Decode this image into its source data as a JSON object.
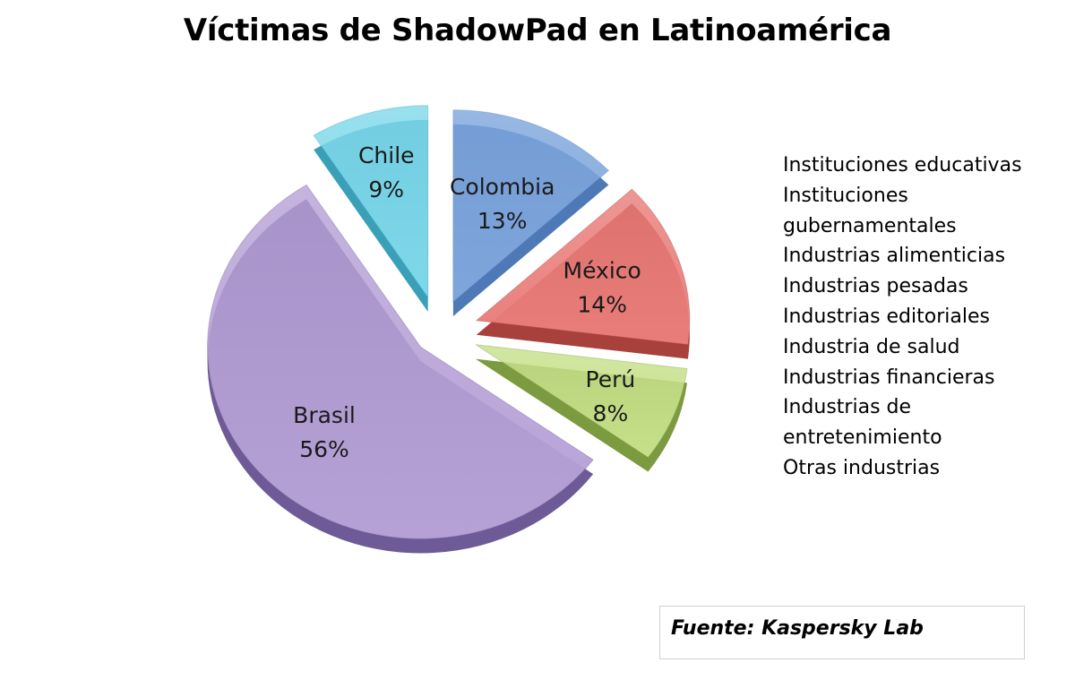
{
  "title": "Víctimas de ShadowPad en Latinoamérica",
  "chart_data": {
    "type": "pie",
    "title": "Víctimas de ShadowPad en Latinoamérica",
    "slices": [
      {
        "name": "Colombia",
        "label": "Colombia",
        "percent": "13%",
        "value": 13,
        "color": "#7ea6dc",
        "dark": "#4e79b6"
      },
      {
        "name": "México",
        "label": "México",
        "percent": "14%",
        "value": 14,
        "color": "#e97d7a",
        "dark": "#a8403c"
      },
      {
        "name": "Perú",
        "label": "Perú",
        "percent": "8%",
        "value": 8,
        "color": "#c6e08a",
        "dark": "#7c9a3f"
      },
      {
        "name": "Brasil",
        "label": "Brasil",
        "percent": "56%",
        "value": 56,
        "color": "#b6a1d6",
        "dark": "#6e5a96"
      },
      {
        "name": "Chile",
        "label": "Chile",
        "percent": "9%",
        "value": 9,
        "color": "#7fd8ea",
        "dark": "#3aa0b8"
      }
    ]
  },
  "industries": [
    "Instituciones educativas",
    "Instituciones gubernamentales",
    "Industrias alimenticias",
    "Industrias pesadas",
    "Industrias editoriales",
    "Industria de salud",
    "Industrias financieras",
    "Industrias de entretenimiento",
    "Otras industrias"
  ],
  "source": "Fuente: Kaspersky Lab"
}
